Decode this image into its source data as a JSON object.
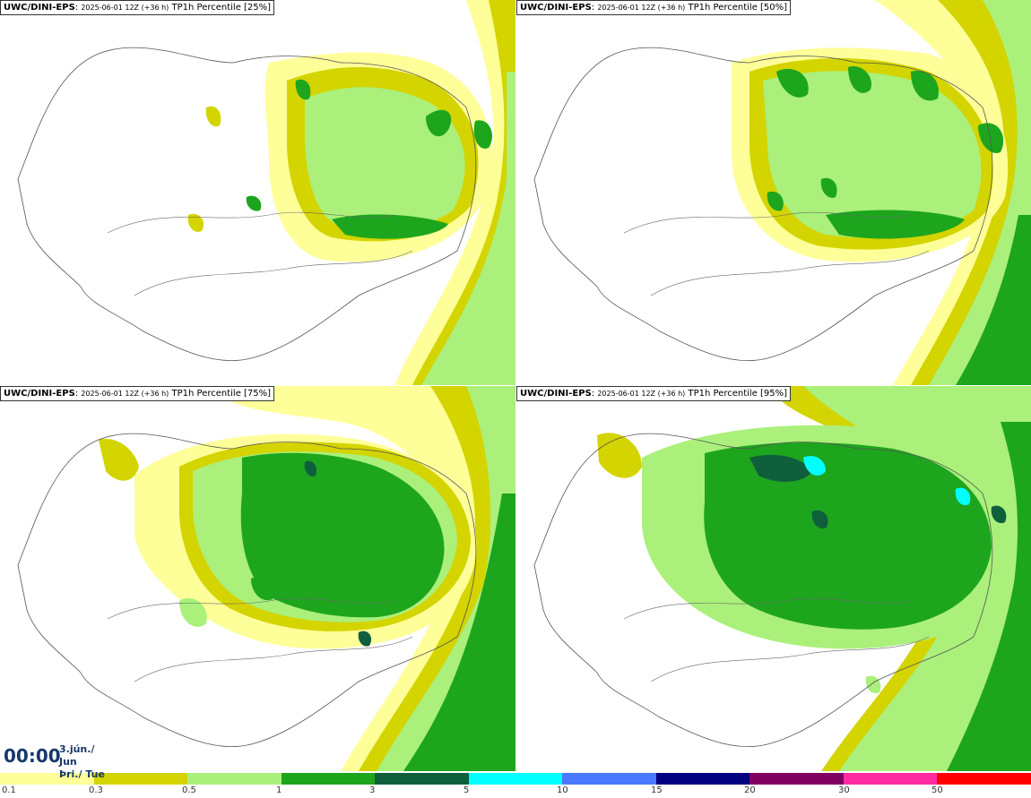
{
  "panels": [
    {
      "model": "UWC/DINI-EPS",
      "run": "2025-06-01 12Z (+36 h)",
      "field": "TP1h Percentile [25%]"
    },
    {
      "model": "UWC/DINI-EPS",
      "run": "2025-06-01 12Z (+36 h)",
      "field": "TP1h Percentile [50%]"
    },
    {
      "model": "UWC/DINI-EPS",
      "run": "2025-06-01 12Z (+36 h)",
      "field": "TP1h Percentile [75%]"
    },
    {
      "model": "UWC/DINI-EPS",
      "run": "2025-06-01 12Z (+36 h)",
      "field": "TP1h Percentile [95%]"
    }
  ],
  "time": {
    "clock": "00:00",
    "date_line1": "3.jún./ Jun",
    "date_line2": "Þri./ Tue"
  },
  "legend": {
    "colors": [
      "#ffff99",
      "#d4d400",
      "#aaf07a",
      "#1ea51e",
      "#0f5f3c",
      "#00ffff",
      "#4a78ff",
      "#000080",
      "#800060",
      "#ff2aa0",
      "#ff0000"
    ],
    "labels": [
      "0.1",
      "0.3",
      "0.5",
      "1",
      "3",
      "5",
      "10",
      "15",
      "20",
      "30",
      "50"
    ]
  }
}
